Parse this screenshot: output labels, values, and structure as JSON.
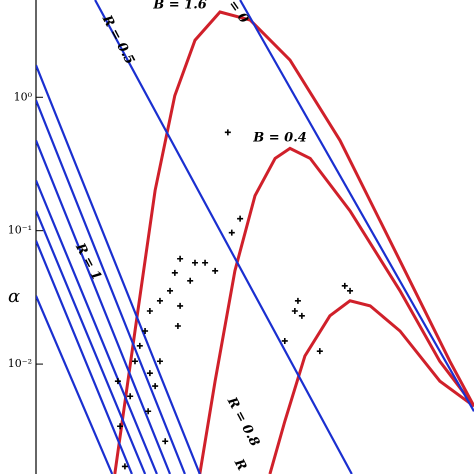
{
  "chart_data": {
    "type": "line",
    "y_scale": "log",
    "ylabel": "α",
    "xlim": [
      0,
      100
    ],
    "ylim": [
      0.0015,
      5.36
    ],
    "yticks": [
      {
        "value": 1,
        "label": "10⁰"
      },
      {
        "value": 0.1,
        "label": "10⁻¹"
      },
      {
        "value": 0.01,
        "label": "10⁻²"
      }
    ],
    "annotations": [
      "B = 1.6",
      "= 0",
      "R = 0.5",
      "B = 0.4",
      "R = 1",
      "R = 0.8",
      "R"
    ],
    "series": [
      {
        "type": "line",
        "color": "#d0202a",
        "x": [
          18,
          22.6,
          27.2,
          31.7,
          36.3,
          42,
          48.9,
          58,
          69.4,
          83.1,
          94.5,
          100
        ],
        "values": [
          0.0015,
          0.0177,
          0.2,
          1.03,
          2.68,
          4.36,
          3.79,
          1.9,
          0.475,
          0.0595,
          0.0105,
          0.00483
        ]
      },
      {
        "type": "line",
        "color": "#d0202a",
        "x": [
          37.4,
          40.9,
          45.4,
          50,
          54.6,
          58,
          62.6,
          71.7,
          83.1,
          92.2,
          100
        ],
        "values": [
          0.0015,
          0.00745,
          0.05,
          0.183,
          0.348,
          0.414,
          0.348,
          0.141,
          0.0354,
          0.0105,
          0.00483
        ]
      },
      {
        "type": "line",
        "color": "#d0202a",
        "x": [
          53.4,
          56.8,
          61.4,
          67.1,
          71.7,
          76.3,
          83.1,
          92.2,
          100
        ],
        "values": [
          0.0015,
          0.00372,
          0.0115,
          0.023,
          0.0298,
          0.0273,
          0.0177,
          0.00745,
          0.00483
        ]
      },
      {
        "type": "line",
        "color": "#1a2fd0",
        "x": [
          46.6,
          100
        ],
        "values": [
          5.36,
          0.00443
        ]
      },
      {
        "type": "line",
        "color": "#1a2fd0",
        "x": [
          13.5,
          72.1
        ],
        "values": [
          5.36,
          0.0015
        ]
      },
      {
        "type": "line",
        "color": "#1a2fd0",
        "x": [
          0,
          37.4
        ],
        "values": [
          1.74,
          0.0015
        ]
      },
      {
        "type": "line",
        "color": "#1a2fd0",
        "x": [
          0,
          34
        ],
        "values": [
          0.949,
          0.0015
        ]
      },
      {
        "type": "line",
        "color": "#1a2fd0",
        "x": [
          0,
          30.6
        ],
        "values": [
          0.475,
          0.0015
        ]
      },
      {
        "type": "line",
        "color": "#1a2fd0",
        "x": [
          0,
          27.6
        ],
        "values": [
          0.238,
          0.0015
        ]
      },
      {
        "type": "line",
        "color": "#1a2fd0",
        "x": [
          0,
          24.9
        ],
        "values": [
          0.141,
          0.0015
        ]
      },
      {
        "type": "line",
        "color": "#1a2fd0",
        "x": [
          0,
          21.9
        ],
        "values": [
          0.0841,
          0.0015
        ]
      },
      {
        "type": "line",
        "color": "#1a2fd0",
        "x": [
          0,
          17.4
        ],
        "values": [
          0.0325,
          0.0015
        ]
      },
      {
        "type": "scatter",
        "color": "#000000",
        "x": [
          43.8,
          46.6,
          44.7,
          36.3,
          32.9,
          31.7,
          30.6,
          28.3,
          26,
          24.9,
          23.7,
          22.6,
          26,
          27.2,
          21.5,
          25.6,
          19.2,
          29.5,
          18.7,
          32.9,
          35.2,
          38.6,
          40.9,
          32.4,
          59.8,
          60.7,
          59.1,
          70.5,
          71.7,
          64.8,
          56.8,
          28.3,
          20.3
        ],
        "values": [
          0.546,
          0.123,
          0.0966,
          0.0575,
          0.0616,
          0.0483,
          0.0354,
          0.0298,
          0.025,
          0.0177,
          0.0137,
          0.0105,
          0.00855,
          0.00684,
          0.00574,
          0.00443,
          0.00342,
          0.00264,
          0.00745,
          0.0273,
          0.0421,
          0.0575,
          0.05,
          0.0193,
          0.0298,
          0.023,
          0.025,
          0.0386,
          0.0354,
          0.0125,
          0.0149,
          0.0105,
          0.00171
        ]
      }
    ]
  }
}
